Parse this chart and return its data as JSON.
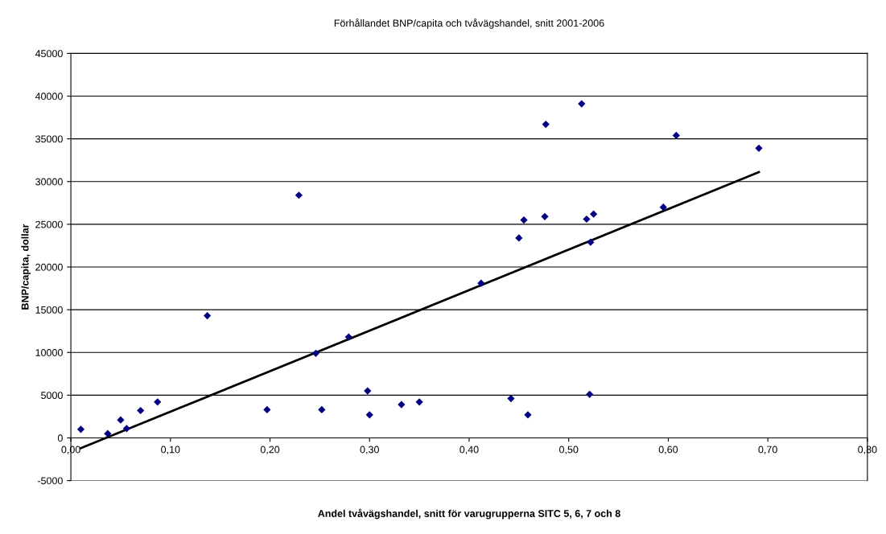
{
  "chart_data": {
    "type": "scatter",
    "title": "Förhållandet BNP/capita och tvåvägshandel, snitt 2001-2006",
    "xlabel": "Andel tvåvägshandel, snitt för varugrupperna SITC 5, 6, 7 och 8",
    "ylabel": "BNP/capita, dollar",
    "series": [
      {
        "color": "#000080",
        "marker": "diamond",
        "x": [
          0.01,
          0.037,
          0.05,
          0.056,
          0.07,
          0.087,
          0.137,
          0.197,
          0.229,
          0.246,
          0.252,
          0.279,
          0.298,
          0.3,
          0.332,
          0.35,
          0.412,
          0.442,
          0.45,
          0.455,
          0.459,
          0.476,
          0.477,
          0.513,
          0.518,
          0.521,
          0.522,
          0.525,
          0.595,
          0.608,
          0.691
        ],
        "values": [
          1000,
          500,
          2100,
          1100,
          3200,
          4200,
          14300,
          3300,
          28400,
          9900,
          3300,
          11800,
          5500,
          2700,
          3900,
          4200,
          18100,
          4600,
          23400,
          25500,
          2700,
          25900,
          36700,
          39100,
          25600,
          5100,
          22900,
          26200,
          27000,
          35400,
          33900
        ]
      },
      {
        "type": "line",
        "color": "#000000",
        "marker": "none",
        "line_style": "solid",
        "x": [
          0.01,
          0.691
        ],
        "values": [
          -1200,
          31100
        ]
      }
    ],
    "xlim": [
      0,
      0.8
    ],
    "xticks": [
      {
        "value": 0,
        "label": "0,00"
      },
      {
        "value": 0.1,
        "label": "0,10"
      },
      {
        "value": 0.2,
        "label": "0,20"
      },
      {
        "value": 0.3,
        "label": "0,30"
      },
      {
        "value": 0.4,
        "label": "0,40"
      },
      {
        "value": 0.5,
        "label": "0,50"
      },
      {
        "value": 0.6,
        "label": "0,60"
      },
      {
        "value": 0.7,
        "label": "0,70"
      },
      {
        "value": 0.8,
        "label": "0,80"
      }
    ],
    "ylim": [
      -5000,
      45000
    ],
    "yticks": [
      -5000,
      0,
      5000,
      10000,
      15000,
      20000,
      25000,
      30000,
      35000,
      40000,
      45000
    ],
    "grid": "y",
    "legend": false
  }
}
